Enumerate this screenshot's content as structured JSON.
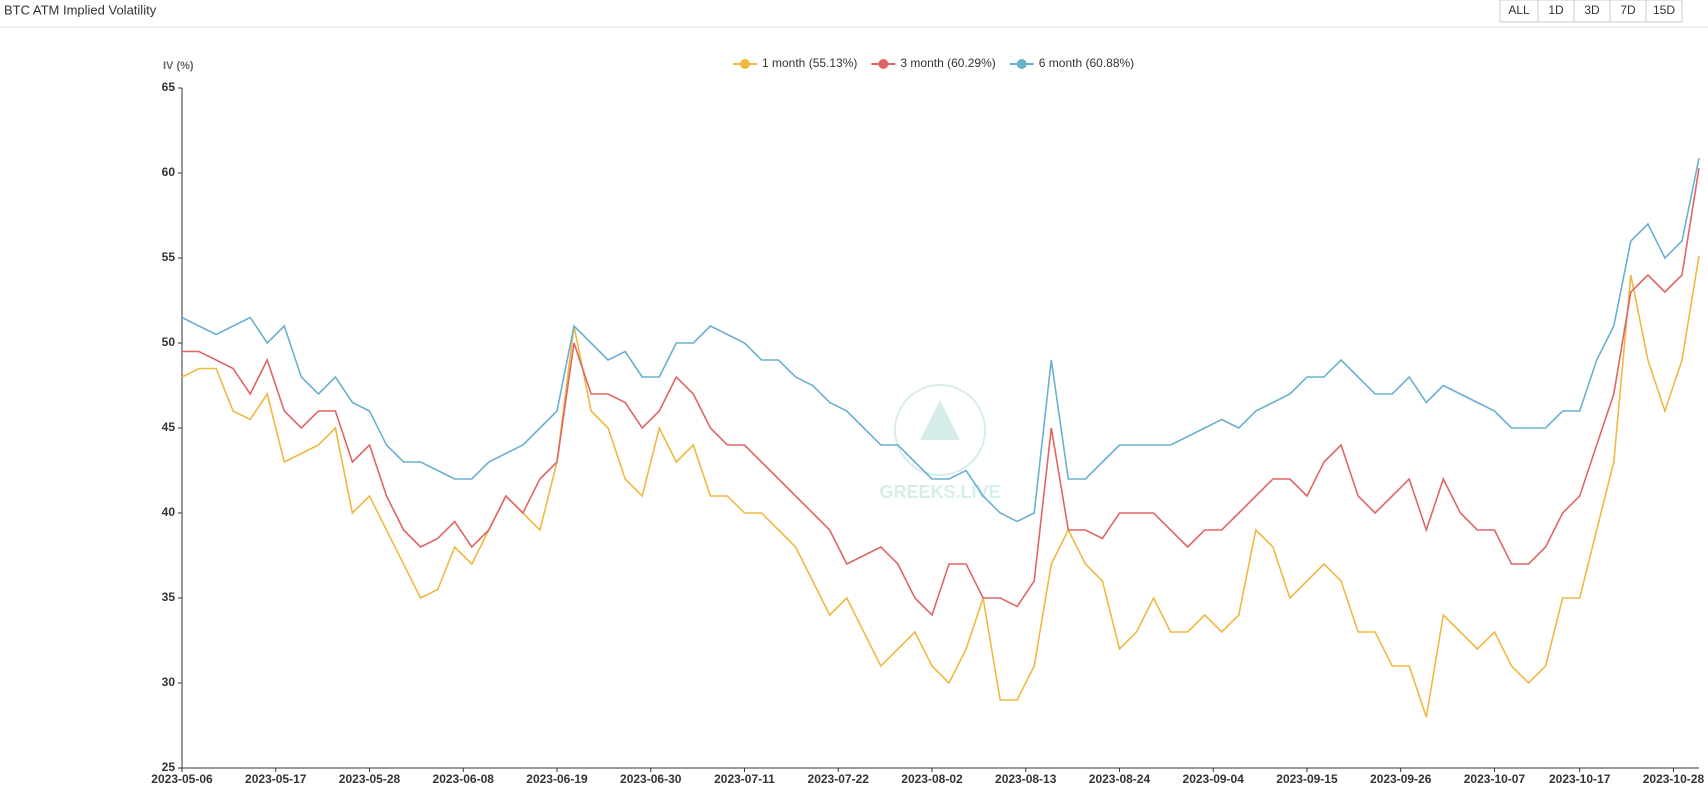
{
  "header": {
    "title": "BTC ATM Implied Volatility",
    "buttons": [
      "ALL",
      "1D",
      "3D",
      "7D",
      "15D"
    ]
  },
  "chart_data": {
    "type": "line",
    "y_label": "IV (%)",
    "watermark": "GREEKS.LIVE",
    "x": [
      "2023-05-06",
      "2023-05-08",
      "2023-05-10",
      "2023-05-12",
      "2023-05-14",
      "2023-05-16",
      "2023-05-18",
      "2023-05-20",
      "2023-05-22",
      "2023-05-24",
      "2023-05-26",
      "2023-05-28",
      "2023-05-30",
      "2023-06-01",
      "2023-06-03",
      "2023-06-05",
      "2023-06-07",
      "2023-06-09",
      "2023-06-11",
      "2023-06-13",
      "2023-06-15",
      "2023-06-17",
      "2023-06-19",
      "2023-06-21",
      "2023-06-23",
      "2023-06-25",
      "2023-06-27",
      "2023-06-29",
      "2023-07-01",
      "2023-07-03",
      "2023-07-05",
      "2023-07-07",
      "2023-07-09",
      "2023-07-11",
      "2023-07-13",
      "2023-07-15",
      "2023-07-17",
      "2023-07-19",
      "2023-07-21",
      "2023-07-23",
      "2023-07-25",
      "2023-07-27",
      "2023-07-29",
      "2023-07-31",
      "2023-08-02",
      "2023-08-04",
      "2023-08-06",
      "2023-08-08",
      "2023-08-10",
      "2023-08-12",
      "2023-08-14",
      "2023-08-16",
      "2023-08-18",
      "2023-08-20",
      "2023-08-22",
      "2023-08-24",
      "2023-08-26",
      "2023-08-28",
      "2023-08-30",
      "2023-09-01",
      "2023-09-03",
      "2023-09-05",
      "2023-09-07",
      "2023-09-09",
      "2023-09-11",
      "2023-09-13",
      "2023-09-15",
      "2023-09-17",
      "2023-09-19",
      "2023-09-21",
      "2023-09-23",
      "2023-09-25",
      "2023-09-27",
      "2023-09-29",
      "2023-10-01",
      "2023-10-03",
      "2023-10-05",
      "2023-10-07",
      "2023-10-09",
      "2023-10-11",
      "2023-10-13",
      "2023-10-15",
      "2023-10-17",
      "2023-10-19",
      "2023-10-21",
      "2023-10-23",
      "2023-10-25",
      "2023-10-27",
      "2023-10-29",
      "2023-10-31"
    ],
    "xlim": [
      "2023-05-06",
      "2023-10-31"
    ],
    "xticks": [
      "2023-05-06",
      "2023-05-17",
      "2023-05-28",
      "2023-06-08",
      "2023-06-19",
      "2023-06-30",
      "2023-07-11",
      "2023-07-22",
      "2023-08-02",
      "2023-08-13",
      "2023-08-24",
      "2023-09-04",
      "2023-09-15",
      "2023-09-26",
      "2023-10-07",
      "2023-10-17",
      "2023-10-28"
    ],
    "ylim": [
      25,
      65
    ],
    "yticks": [
      25,
      30,
      35,
      40,
      45,
      50,
      55,
      60,
      65
    ],
    "series": [
      {
        "name": "1 month (55.13%)",
        "color": "#f0b942",
        "values": [
          48,
          48.5,
          48.5,
          46,
          45.5,
          47,
          43,
          43.5,
          44,
          45,
          40,
          41,
          39,
          37,
          35,
          35.5,
          38,
          37,
          39,
          41,
          40,
          39,
          43,
          51,
          46,
          45,
          42,
          41,
          45,
          43,
          44,
          41,
          41,
          40,
          40,
          39,
          38,
          36,
          34,
          35,
          33,
          31,
          32,
          33,
          31,
          30,
          32,
          35,
          29,
          29,
          31,
          37,
          39,
          37,
          36,
          32,
          33,
          35,
          33,
          33,
          34,
          33,
          34,
          39,
          38,
          35,
          36,
          37,
          36,
          33,
          33,
          31,
          31,
          28,
          34,
          33,
          32,
          33,
          31,
          30,
          31,
          35,
          35,
          39,
          43,
          54,
          49,
          46,
          49,
          55.13
        ]
      },
      {
        "name": "3 month (60.29%)",
        "color": "#e06666",
        "values": [
          49.5,
          49.5,
          49,
          48.5,
          47,
          49,
          46,
          45,
          46,
          46,
          43,
          44,
          41,
          39,
          38,
          38.5,
          39.5,
          38,
          39,
          41,
          40,
          42,
          43,
          50,
          47,
          47,
          46.5,
          45,
          46,
          48,
          47,
          45,
          44,
          44,
          43,
          42,
          41,
          40,
          39,
          37,
          37.5,
          38,
          37,
          35,
          34,
          37,
          37,
          35,
          35,
          34.5,
          36,
          45,
          39,
          39,
          38.5,
          40,
          40,
          40,
          39,
          38,
          39,
          39,
          40,
          41,
          42,
          42,
          41,
          43,
          44,
          41,
          40,
          41,
          42,
          39,
          42,
          40,
          39,
          39,
          37,
          37,
          38,
          40,
          41,
          44,
          47,
          53,
          54,
          53,
          54,
          60.29
        ]
      },
      {
        "name": "6 month (60.88%)",
        "color": "#6ab0d0",
        "values": [
          51.5,
          51,
          50.5,
          51,
          51.5,
          50,
          51,
          48,
          47,
          48,
          46.5,
          46,
          44,
          43,
          43,
          42.5,
          42,
          42,
          43,
          43.5,
          44,
          45,
          46,
          51,
          50,
          49,
          49.5,
          48,
          48,
          50,
          50,
          51,
          50.5,
          50,
          49,
          49,
          48,
          47.5,
          46.5,
          46,
          45,
          44,
          44,
          43,
          42,
          42,
          42.5,
          41,
          40,
          39.5,
          40,
          49,
          42,
          42,
          43,
          44,
          44,
          44,
          44,
          44.5,
          45,
          45.5,
          45,
          46,
          46.5,
          47,
          48,
          48,
          49,
          48,
          47,
          47,
          48,
          46.5,
          47.5,
          47,
          46.5,
          46,
          45,
          45,
          45,
          46,
          46,
          49,
          51,
          56,
          57,
          55,
          56,
          60.88
        ]
      }
    ]
  }
}
